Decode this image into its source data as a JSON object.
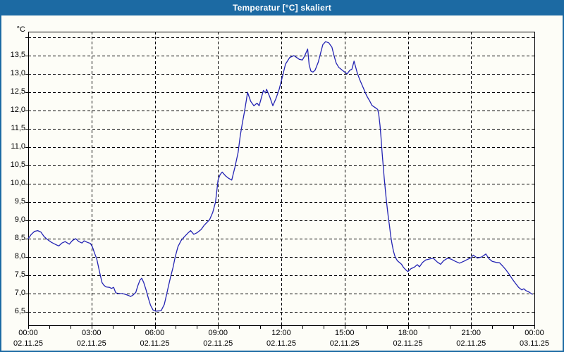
{
  "window": {
    "title": "Temperatur [°C] skaliert",
    "titlebar_color": "#1c6aa3",
    "border_color": "#1c6aa3",
    "background_color": "#fdfdf7"
  },
  "chart_data": {
    "type": "line",
    "title": "Temperatur [°C] skaliert",
    "series_name": "Temperatur",
    "unit_label": "°C",
    "line_color": "#2424b4",
    "grid": true,
    "grid_style": "dashed",
    "xlabel": "",
    "ylabel": "°C",
    "ylim": [
      6.13,
      14.15
    ],
    "xlim_hours": [
      0,
      24
    ],
    "ytick_values": [
      6.5,
      7.0,
      7.5,
      8.0,
      8.5,
      9.0,
      9.5,
      10.0,
      10.5,
      11.0,
      11.5,
      12.0,
      12.5,
      13.0,
      13.5
    ],
    "ytick_labels": [
      "6,5",
      "7,0",
      "7,5",
      "8,0",
      "8,5",
      "9,0",
      "9,5",
      "10,0",
      "10,5",
      "11,0",
      "11,5",
      "12,0",
      "12,5",
      "13,0",
      "13,5"
    ],
    "unlabeled_gridline_value": 14.0,
    "xticks": [
      {
        "hour": 0,
        "time": "00:00",
        "date": "02.11.25"
      },
      {
        "hour": 3,
        "time": "03:00",
        "date": "02.11.25"
      },
      {
        "hour": 6,
        "time": "06:00",
        "date": "02.11.25"
      },
      {
        "hour": 9,
        "time": "09:00",
        "date": "02.11.25"
      },
      {
        "hour": 12,
        "time": "12:00",
        "date": "02.11.25"
      },
      {
        "hour": 15,
        "time": "15:00",
        "date": "02.11.25"
      },
      {
        "hour": 18,
        "time": "18:00",
        "date": "02.11.25"
      },
      {
        "hour": 21,
        "time": "21:00",
        "date": "02.11.25"
      },
      {
        "hour": 24,
        "time": "00:00",
        "date": "03.11.25"
      }
    ],
    "minor_xtick_every_hours": 1,
    "points": [
      [
        0.0,
        8.5
      ],
      [
        0.15,
        8.62
      ],
      [
        0.3,
        8.7
      ],
      [
        0.45,
        8.72
      ],
      [
        0.6,
        8.68
      ],
      [
        0.75,
        8.56
      ],
      [
        0.9,
        8.48
      ],
      [
        1.1,
        8.4
      ],
      [
        1.3,
        8.34
      ],
      [
        1.45,
        8.3
      ],
      [
        1.6,
        8.38
      ],
      [
        1.75,
        8.42
      ],
      [
        1.95,
        8.35
      ],
      [
        2.1,
        8.45
      ],
      [
        2.25,
        8.5
      ],
      [
        2.4,
        8.42
      ],
      [
        2.55,
        8.38
      ],
      [
        2.65,
        8.44
      ],
      [
        2.8,
        8.4
      ],
      [
        2.95,
        8.37
      ],
      [
        3.05,
        8.27
      ],
      [
        3.15,
        8.1
      ],
      [
        3.25,
        7.95
      ],
      [
        3.4,
        7.55
      ],
      [
        3.5,
        7.3
      ],
      [
        3.6,
        7.22
      ],
      [
        3.7,
        7.18
      ],
      [
        3.85,
        7.17
      ],
      [
        3.95,
        7.14
      ],
      [
        4.05,
        7.17
      ],
      [
        4.15,
        7.02
      ],
      [
        4.3,
        7.0
      ],
      [
        4.45,
        7.0
      ],
      [
        4.6,
        6.98
      ],
      [
        4.75,
        6.95
      ],
      [
        4.85,
        6.92
      ],
      [
        4.95,
        6.95
      ],
      [
        5.1,
        7.03
      ],
      [
        5.2,
        7.22
      ],
      [
        5.3,
        7.37
      ],
      [
        5.38,
        7.42
      ],
      [
        5.48,
        7.3
      ],
      [
        5.6,
        7.08
      ],
      [
        5.7,
        6.87
      ],
      [
        5.8,
        6.68
      ],
      [
        5.92,
        6.55
      ],
      [
        6.05,
        6.52
      ],
      [
        6.3,
        6.53
      ],
      [
        6.45,
        6.7
      ],
      [
        6.55,
        6.95
      ],
      [
        6.65,
        7.2
      ],
      [
        6.75,
        7.45
      ],
      [
        6.87,
        7.72
      ],
      [
        6.97,
        8.0
      ],
      [
        7.1,
        8.28
      ],
      [
        7.25,
        8.45
      ],
      [
        7.4,
        8.55
      ],
      [
        7.6,
        8.67
      ],
      [
        7.7,
        8.72
      ],
      [
        7.85,
        8.62
      ],
      [
        8.0,
        8.66
      ],
      [
        8.2,
        8.75
      ],
      [
        8.35,
        8.87
      ],
      [
        8.6,
        9.02
      ],
      [
        8.75,
        9.22
      ],
      [
        8.88,
        9.5
      ],
      [
        9.0,
        10.1
      ],
      [
        9.1,
        10.25
      ],
      [
        9.2,
        10.32
      ],
      [
        9.35,
        10.22
      ],
      [
        9.5,
        10.15
      ],
      [
        9.65,
        10.1
      ],
      [
        9.8,
        10.45
      ],
      [
        9.95,
        10.85
      ],
      [
        10.05,
        11.3
      ],
      [
        10.15,
        11.65
      ],
      [
        10.25,
        11.95
      ],
      [
        10.35,
        12.3
      ],
      [
        10.4,
        12.5
      ],
      [
        10.55,
        12.25
      ],
      [
        10.7,
        12.13
      ],
      [
        10.85,
        12.2
      ],
      [
        10.95,
        12.13
      ],
      [
        11.15,
        12.55
      ],
      [
        11.25,
        12.48
      ],
      [
        11.3,
        12.58
      ],
      [
        11.45,
        12.38
      ],
      [
        11.6,
        12.13
      ],
      [
        11.75,
        12.33
      ],
      [
        11.9,
        12.58
      ],
      [
        12.05,
        12.92
      ],
      [
        12.2,
        13.27
      ],
      [
        12.4,
        13.45
      ],
      [
        12.6,
        13.5
      ],
      [
        12.85,
        13.4
      ],
      [
        13.0,
        13.38
      ],
      [
        13.1,
        13.48
      ],
      [
        13.25,
        13.68
      ],
      [
        13.32,
        13.25
      ],
      [
        13.4,
        13.08
      ],
      [
        13.5,
        13.05
      ],
      [
        13.6,
        13.1
      ],
      [
        13.75,
        13.32
      ],
      [
        13.87,
        13.58
      ],
      [
        13.97,
        13.8
      ],
      [
        14.1,
        13.88
      ],
      [
        14.25,
        13.85
      ],
      [
        14.4,
        13.73
      ],
      [
        14.5,
        13.5
      ],
      [
        14.6,
        13.3
      ],
      [
        14.72,
        13.18
      ],
      [
        14.85,
        13.12
      ],
      [
        15.0,
        13.05
      ],
      [
        15.12,
        13.0
      ],
      [
        15.25,
        13.1
      ],
      [
        15.35,
        13.13
      ],
      [
        15.45,
        13.35
      ],
      [
        15.6,
        13.03
      ],
      [
        15.72,
        12.84
      ],
      [
        15.9,
        12.6
      ],
      [
        16.05,
        12.4
      ],
      [
        16.2,
        12.25
      ],
      [
        16.3,
        12.14
      ],
      [
        16.45,
        12.08
      ],
      [
        16.57,
        12.03
      ],
      [
        16.62,
        11.9
      ],
      [
        16.68,
        11.6
      ],
      [
        16.73,
        11.25
      ],
      [
        16.78,
        10.85
      ],
      [
        16.83,
        10.5
      ],
      [
        16.88,
        10.15
      ],
      [
        16.93,
        9.85
      ],
      [
        16.98,
        9.55
      ],
      [
        17.03,
        9.3
      ],
      [
        17.08,
        9.05
      ],
      [
        17.13,
        8.85
      ],
      [
        17.18,
        8.6
      ],
      [
        17.25,
        8.35
      ],
      [
        17.32,
        8.15
      ],
      [
        17.4,
        8.0
      ],
      [
        17.5,
        7.9
      ],
      [
        17.6,
        7.85
      ],
      [
        17.7,
        7.8
      ],
      [
        17.8,
        7.71
      ],
      [
        17.9,
        7.65
      ],
      [
        18.0,
        7.6
      ],
      [
        18.15,
        7.68
      ],
      [
        18.3,
        7.72
      ],
      [
        18.45,
        7.79
      ],
      [
        18.55,
        7.73
      ],
      [
        18.7,
        7.85
      ],
      [
        18.85,
        7.92
      ],
      [
        19.0,
        7.94
      ],
      [
        19.2,
        7.97
      ],
      [
        19.4,
        7.86
      ],
      [
        19.55,
        7.8
      ],
      [
        19.7,
        7.9
      ],
      [
        19.9,
        7.97
      ],
      [
        20.05,
        7.94
      ],
      [
        20.25,
        7.88
      ],
      [
        20.45,
        7.83
      ],
      [
        20.65,
        7.88
      ],
      [
        20.85,
        7.94
      ],
      [
        21.0,
        7.98
      ],
      [
        21.1,
        8.05
      ],
      [
        21.3,
        7.97
      ],
      [
        21.5,
        8.0
      ],
      [
        21.7,
        8.08
      ],
      [
        21.85,
        7.95
      ],
      [
        22.0,
        7.88
      ],
      [
        22.2,
        7.85
      ],
      [
        22.35,
        7.84
      ],
      [
        22.5,
        7.75
      ],
      [
        22.65,
        7.65
      ],
      [
        22.8,
        7.53
      ],
      [
        22.95,
        7.4
      ],
      [
        23.1,
        7.28
      ],
      [
        23.25,
        7.17
      ],
      [
        23.4,
        7.1
      ],
      [
        23.5,
        7.13
      ],
      [
        23.6,
        7.08
      ],
      [
        23.75,
        7.04
      ],
      [
        23.9,
        6.98
      ]
    ]
  }
}
